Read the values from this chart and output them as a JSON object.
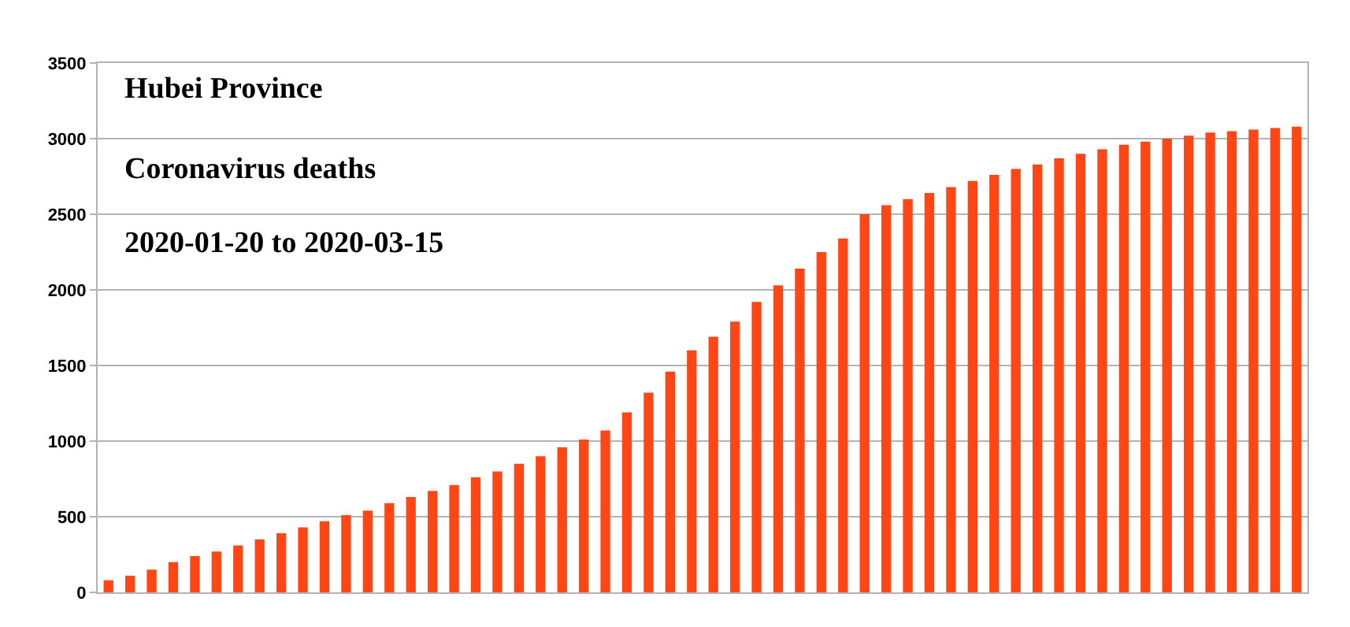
{
  "chart_data": {
    "type": "bar",
    "title": "Hubei Province",
    "subtitle": "Coronavirus deaths",
    "annotations": [
      "2020-01-20 to 2020-03-15"
    ],
    "categories": [
      null,
      null,
      null,
      null,
      null,
      null,
      null,
      null,
      null,
      null,
      null,
      null,
      null,
      null,
      null,
      null,
      null,
      null,
      null,
      null,
      null,
      null,
      null,
      null,
      null,
      null,
      null,
      null,
      null,
      null,
      null,
      null,
      null,
      null,
      null,
      null,
      null,
      null,
      null,
      null,
      null,
      null,
      null,
      null,
      null,
      null,
      null,
      null,
      null,
      null,
      null,
      null,
      null,
      null,
      null,
      null
    ],
    "values": [
      80,
      110,
      150,
      200,
      240,
      270,
      310,
      350,
      390,
      430,
      470,
      510,
      540,
      590,
      630,
      670,
      710,
      760,
      800,
      850,
      900,
      960,
      1010,
      1070,
      1190,
      1320,
      1460,
      1600,
      1690,
      1790,
      1920,
      2030,
      2140,
      2250,
      2340,
      2500,
      2560,
      2600,
      2640,
      2680,
      2720,
      2760,
      2800,
      2830,
      2870,
      2900,
      2930,
      2960,
      2980,
      3000,
      3020,
      3040,
      3050,
      3060,
      3070,
      3080
    ],
    "color": "#ff4614",
    "ylim": [
      0,
      3500
    ],
    "yticks": [
      0,
      500,
      1000,
      1500,
      2000,
      2500,
      3000,
      3500
    ],
    "grid": "y"
  }
}
